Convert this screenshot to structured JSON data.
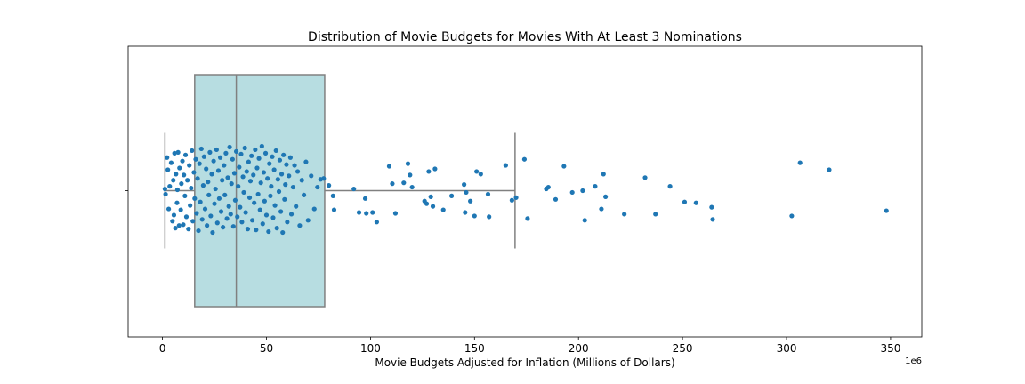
{
  "chart_data": {
    "type": "box",
    "title": "Distribution of Movie Budgets for Movies With At Least 3 Nominations",
    "xlabel": "Movie Budgets Adjusted for Inflation (Millions of Dollars)",
    "xlim": [
      -16.5,
      365
    ],
    "xticks": [
      0,
      50,
      100,
      150,
      200,
      250,
      300,
      350
    ],
    "offset_text": "1e6",
    "box": {
      "whisker_low": 1.2,
      "q1": 15.5,
      "median": 35.5,
      "q3": 78,
      "whisker_high": 169.5
    },
    "colors": {
      "box_fill": "#b7dde1",
      "box_edge": "#808080",
      "points": "#1f77b4"
    },
    "points": [
      [
        1.2,
        0.02
      ],
      [
        1.5,
        -0.04
      ],
      [
        2.2,
        0.38
      ],
      [
        2.6,
        0.24
      ],
      [
        3.0,
        -0.21
      ],
      [
        3.5,
        0.05
      ],
      [
        4.2,
        0.32
      ],
      [
        4.8,
        -0.35
      ],
      [
        5.2,
        0.12
      ],
      [
        5.5,
        -0.28
      ],
      [
        5.8,
        0.43
      ],
      [
        6.2,
        -0.43
      ],
      [
        6.5,
        0.19
      ],
      [
        7.0,
        -0.14
      ],
      [
        7.2,
        0.01
      ],
      [
        7.5,
        0.44
      ],
      [
        8.0,
        -0.4
      ],
      [
        8.2,
        0.26
      ],
      [
        8.8,
        -0.22
      ],
      [
        9.1,
        0.08
      ],
      [
        9.6,
        0.34
      ],
      [
        10.0,
        -0.39
      ],
      [
        10.3,
        0.18
      ],
      [
        10.8,
        -0.06
      ],
      [
        11.1,
        0.41
      ],
      [
        11.5,
        -0.3
      ],
      [
        12.0,
        0.12
      ],
      [
        12.5,
        -0.44
      ],
      [
        12.9,
        0.29
      ],
      [
        13.3,
        -0.17
      ],
      [
        13.8,
        0.03
      ],
      [
        14.2,
        0.46
      ],
      [
        14.6,
        -0.35
      ],
      [
        15.1,
        0.21
      ],
      [
        15.5,
        -0.09
      ],
      [
        16.0,
        0.36
      ],
      [
        16.4,
        -0.26
      ],
      [
        16.9,
        0.14
      ],
      [
        17.3,
        -0.46
      ],
      [
        17.8,
        0.31
      ],
      [
        18.2,
        -0.13
      ],
      [
        18.7,
        0.48
      ],
      [
        19.1,
        -0.33
      ],
      [
        19.6,
        0.06
      ],
      [
        20.0,
        0.39
      ],
      [
        20.5,
        -0.21
      ],
      [
        21.0,
        0.25
      ],
      [
        21.4,
        -0.4
      ],
      [
        21.9,
        0.1
      ],
      [
        22.3,
        -0.05
      ],
      [
        22.8,
        0.44
      ],
      [
        23.2,
        -0.29
      ],
      [
        23.7,
        0.19
      ],
      [
        24.1,
        -0.48
      ],
      [
        24.6,
        0.34
      ],
      [
        25.0,
        -0.15
      ],
      [
        25.5,
        0.02
      ],
      [
        26.0,
        0.47
      ],
      [
        26.4,
        -0.37
      ],
      [
        26.9,
        0.23
      ],
      [
        27.3,
        -0.09
      ],
      [
        27.8,
        0.38
      ],
      [
        28.2,
        -0.24
      ],
      [
        28.7,
        0.12
      ],
      [
        29.1,
        -0.42
      ],
      [
        29.6,
        0.29
      ],
      [
        30.0,
        -0.05
      ],
      [
        30.5,
        0.43
      ],
      [
        31.0,
        -0.32
      ],
      [
        31.4,
        0.15
      ],
      [
        31.9,
        -0.18
      ],
      [
        32.3,
        0.5
      ],
      [
        32.8,
        -0.27
      ],
      [
        33.2,
        0.08
      ],
      [
        33.7,
        0.36
      ],
      [
        34.1,
        -0.41
      ],
      [
        34.6,
        0.2
      ],
      [
        35.0,
        -0.11
      ],
      [
        35.5,
        0.45
      ],
      [
        36.0,
        -0.3
      ],
      [
        36.4,
        0.05
      ],
      [
        36.9,
        0.27
      ],
      [
        37.3,
        -0.19
      ],
      [
        37.8,
        0.42
      ],
      [
        38.2,
        -0.36
      ],
      [
        38.7,
        0.16
      ],
      [
        39.1,
        -0.02
      ],
      [
        39.6,
        0.49
      ],
      [
        40.0,
        -0.25
      ],
      [
        40.5,
        0.22
      ],
      [
        41.0,
        -0.44
      ],
      [
        41.4,
        0.33
      ],
      [
        41.9,
        -0.08
      ],
      [
        42.3,
        0.11
      ],
      [
        42.8,
        0.4
      ],
      [
        43.2,
        -0.34
      ],
      [
        43.7,
        0.18
      ],
      [
        44.1,
        -0.14
      ],
      [
        44.6,
        0.47
      ],
      [
        45.0,
        -0.45
      ],
      [
        45.5,
        0.26
      ],
      [
        46.0,
        -0.04
      ],
      [
        46.4,
        0.37
      ],
      [
        46.9,
        -0.22
      ],
      [
        47.3,
        0.09
      ],
      [
        47.8,
        0.51
      ],
      [
        48.2,
        -0.38
      ],
      [
        48.7,
        0.21
      ],
      [
        49.1,
        -0.12
      ],
      [
        49.6,
        0.43
      ],
      [
        50.0,
        -0.28
      ],
      [
        50.5,
        0.14
      ],
      [
        51.0,
        -0.47
      ],
      [
        51.4,
        0.31
      ],
      [
        51.9,
        -0.06
      ],
      [
        52.3,
        0.05
      ],
      [
        52.8,
        0.39
      ],
      [
        53.2,
        -0.31
      ],
      [
        53.7,
        0.24
      ],
      [
        54.1,
        -0.17
      ],
      [
        54.6,
        0.46
      ],
      [
        55.0,
        -0.43
      ],
      [
        55.5,
        0.13
      ],
      [
        56.0,
        -0.01
      ],
      [
        56.4,
        0.35
      ],
      [
        56.9,
        -0.24
      ],
      [
        57.3,
        0.19
      ],
      [
        57.8,
        -0.48
      ],
      [
        58.2,
        0.41
      ],
      [
        58.7,
        -0.1
      ],
      [
        59.1,
        0.07
      ],
      [
        59.6,
        0.3
      ],
      [
        60.0,
        -0.36
      ],
      [
        60.8,
        0.17
      ],
      [
        61.5,
        0.38
      ],
      [
        62.0,
        -0.27
      ],
      [
        62.8,
        0.04
      ],
      [
        63.5,
        0.29
      ],
      [
        64.2,
        -0.18
      ],
      [
        65.0,
        0.22
      ],
      [
        66.0,
        -0.4
      ],
      [
        67.0,
        0.12
      ],
      [
        68.0,
        -0.05
      ],
      [
        69.0,
        0.33
      ],
      [
        70.0,
        -0.34
      ],
      [
        71.5,
        0.17
      ],
      [
        73.0,
        -0.21
      ],
      [
        74.5,
        0.04
      ],
      [
        76.0,
        0.13
      ],
      [
        77.5,
        0.14
      ],
      [
        80.0,
        0.06
      ],
      [
        82.0,
        -0.06
      ],
      [
        82.5,
        -0.22
      ],
      [
        92.0,
        0.02
      ],
      [
        94.5,
        -0.25
      ],
      [
        97.5,
        -0.09
      ],
      [
        98.0,
        -0.26
      ],
      [
        101.0,
        -0.25
      ],
      [
        103.0,
        -0.36
      ],
      [
        109.0,
        0.28
      ],
      [
        110.5,
        0.08
      ],
      [
        112.0,
        -0.26
      ],
      [
        116.0,
        0.09
      ],
      [
        118.0,
        0.31
      ],
      [
        119.0,
        0.18
      ],
      [
        120.0,
        0.04
      ],
      [
        126.0,
        -0.12
      ],
      [
        127.0,
        -0.15
      ],
      [
        128.0,
        0.22
      ],
      [
        129.0,
        -0.07
      ],
      [
        130.0,
        -0.18
      ],
      [
        131.0,
        0.25
      ],
      [
        135.0,
        -0.22
      ],
      [
        139.0,
        -0.06
      ],
      [
        145.0,
        0.07
      ],
      [
        145.5,
        -0.25
      ],
      [
        146.0,
        -0.02
      ],
      [
        148.0,
        -0.12
      ],
      [
        150.0,
        -0.29
      ],
      [
        151.0,
        0.22
      ],
      [
        153.0,
        0.19
      ],
      [
        156.5,
        -0.04
      ],
      [
        157.0,
        -0.3
      ],
      [
        165.0,
        0.29
      ],
      [
        168.0,
        -0.11
      ],
      [
        170.0,
        -0.08
      ],
      [
        174.0,
        0.36
      ],
      [
        175.5,
        -0.32
      ],
      [
        184.5,
        0.02
      ],
      [
        185.5,
        0.04
      ],
      [
        189.0,
        -0.1
      ],
      [
        193.0,
        0.28
      ],
      [
        197.0,
        -0.02
      ],
      [
        202.0,
        0.0
      ],
      [
        203.0,
        -0.34
      ],
      [
        208.0,
        0.05
      ],
      [
        211.0,
        -0.21
      ],
      [
        212.0,
        0.19
      ],
      [
        213.0,
        -0.07
      ],
      [
        222.0,
        -0.27
      ],
      [
        232.0,
        0.15
      ],
      [
        237.0,
        -0.27
      ],
      [
        244.0,
        0.05
      ],
      [
        251.0,
        -0.13
      ],
      [
        256.5,
        -0.14
      ],
      [
        264.0,
        -0.19
      ],
      [
        264.5,
        -0.33
      ],
      [
        302.5,
        -0.29
      ],
      [
        306.5,
        0.32
      ],
      [
        320.5,
        0.24
      ],
      [
        348.0,
        -0.23
      ]
    ]
  }
}
